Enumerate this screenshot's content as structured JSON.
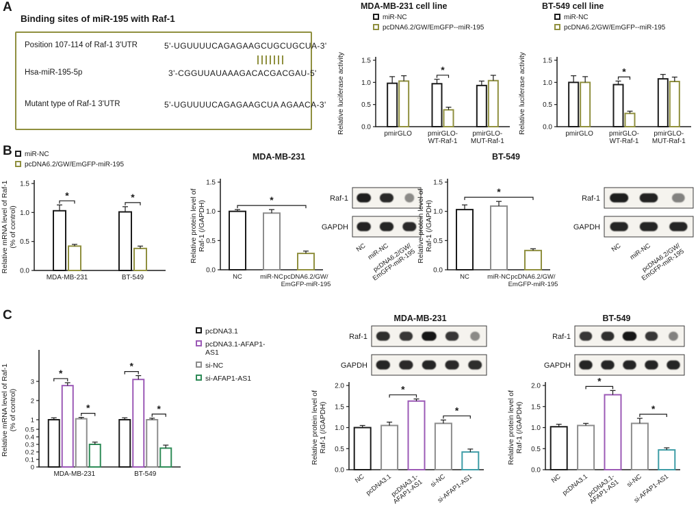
{
  "figure": {
    "panel_a_label": "A",
    "panel_b_label": "B",
    "panel_c_label": "C"
  },
  "binding_box": {
    "title": "Binding sites of miR-195 with Raf-1",
    "rows": [
      {
        "label": "Position 107-114 of Raf-1 3'UTR",
        "sequence": "5'-UGUUUUCAGAGAAGCUGCUGCUA-3'"
      },
      {
        "label": "Hsa-miR-195-5p",
        "sequence": "3'-CGGUUAUAAAGACACGACGAU-5'"
      },
      {
        "label": "Mutant type of Raf-1 3'UTR",
        "sequence": "5'-UGUUUUCAGAGAAGCUA AGAACA-3'"
      }
    ],
    "match_marks": 7
  },
  "chart_data": [
    {
      "id": "luciferase-mda",
      "type": "bar",
      "title": "MDA-MB-231 cell line",
      "ylabel": [
        "Relative luciferase activity"
      ],
      "ylim": [
        0,
        1.5
      ],
      "yticks": [
        {
          "label": "0.0",
          "value": 0
        },
        {
          "label": "0.5",
          "value": 0.5
        },
        {
          "label": "1.0",
          "value": 1.0
        },
        {
          "label": "1.5",
          "value": 1.5
        }
      ],
      "categories": [
        "pmirGLO",
        "pmirGLO-\nWT-Raf-1",
        "pmirGLO-\nMUT-Raf-1"
      ],
      "series": [
        {
          "name": "miR-NC",
          "color": "#1a1a1a",
          "values": [
            0.98,
            0.97,
            0.93
          ],
          "errors": [
            0.15,
            0.1,
            0.1
          ]
        },
        {
          "name": "pcDNA6.2/GW/EmGFP--miR-195",
          "color": "#8f8f3e",
          "values": [
            1.03,
            0.38,
            1.04
          ],
          "errors": [
            0.12,
            0.06,
            0.12
          ]
        }
      ],
      "significance": [
        {
          "group": 1,
          "between": [
            0,
            1
          ],
          "label": "*"
        }
      ]
    },
    {
      "id": "luciferase-bt",
      "type": "bar",
      "title": "BT-549 cell line",
      "ylabel": [
        "Relative luciferase activity"
      ],
      "ylim": [
        0,
        1.5
      ],
      "yticks": [
        {
          "label": "0.0",
          "value": 0
        },
        {
          "label": "0.5",
          "value": 0.5
        },
        {
          "label": "1.0",
          "value": 1.0
        },
        {
          "label": "1.5",
          "value": 1.5
        }
      ],
      "categories": [
        "pmirGLO",
        "pmirGLO-\nWT-Raf-1",
        "pmirGLO-\nMUT-Raf-1"
      ],
      "series": [
        {
          "name": "miR-NC",
          "color": "#1a1a1a",
          "values": [
            1.0,
            0.95,
            1.08
          ],
          "errors": [
            0.15,
            0.08,
            0.1
          ]
        },
        {
          "name": "pcDNA6.2/GW/EmGFP--miR-195",
          "color": "#8f8f3e",
          "values": [
            1.0,
            0.3,
            1.02
          ],
          "errors": [
            0.13,
            0.05,
            0.1
          ]
        }
      ],
      "significance": [
        {
          "group": 1,
          "between": [
            0,
            1
          ],
          "label": "*"
        }
      ]
    },
    {
      "id": "mrna-raf1",
      "type": "bar",
      "title": "",
      "ylabel": [
        "Relative mRNA level of Raf-1",
        "(% of control)"
      ],
      "ylim": [
        0,
        1.5
      ],
      "yticks": [
        {
          "label": "0.0",
          "value": 0
        },
        {
          "label": "0.5",
          "value": 0.5
        },
        {
          "label": "1.0",
          "value": 1.0
        },
        {
          "label": "1.5",
          "value": 1.5
        }
      ],
      "categories": [
        "MDA-MB-231",
        "BT-549"
      ],
      "series": [
        {
          "name": "miR-NC",
          "color": "#1a1a1a",
          "values": [
            1.03,
            1.01
          ],
          "errors": [
            0.1,
            0.09
          ]
        },
        {
          "name": "pcDNA6.2/GW/EmGFP-miR-195",
          "color": "#8f8f3e",
          "values": [
            0.42,
            0.38
          ],
          "errors": [
            0.03,
            0.04
          ]
        }
      ],
      "significance": [
        {
          "group": 0,
          "between": [
            0,
            1
          ],
          "label": "*"
        },
        {
          "group": 1,
          "between": [
            0,
            1
          ],
          "label": "*"
        }
      ]
    },
    {
      "id": "protein-raf1-mda",
      "type": "bar",
      "title": "MDA-MB-231",
      "ylabel": [
        "Relative protein level of",
        "Raf-1 (/GAPDH)"
      ],
      "ylim": [
        0,
        1.5
      ],
      "yticks": [
        {
          "label": "0.0",
          "value": 0
        },
        {
          "label": "0.5",
          "value": 0.5
        },
        {
          "label": "1.0",
          "value": 1.0
        },
        {
          "label": "1.5",
          "value": 1.5
        }
      ],
      "bars": [
        {
          "label": "NC",
          "value": 1.0,
          "error": 0.03,
          "color": "#1a1a1a"
        },
        {
          "label": "miR-NC",
          "value": 0.97,
          "error": 0.06,
          "color": "#8c8c8c"
        },
        {
          "label": "pcDNA6.2/GW/\nEmGFP-miR-195",
          "value": 0.28,
          "error": 0.04,
          "color": "#8f8f3e"
        }
      ],
      "significance": [
        {
          "between": [
            0,
            2
          ],
          "label": "*"
        }
      ]
    },
    {
      "id": "protein-raf1-bt",
      "type": "bar",
      "title": "BT-549",
      "ylabel": [
        "Relative protein level of",
        "Raf-1 (/GAPDH)"
      ],
      "ylim": [
        0,
        1.5
      ],
      "yticks": [
        {
          "label": "0.0",
          "value": 0
        },
        {
          "label": "0.5",
          "value": 0.5
        },
        {
          "label": "1.0",
          "value": 1.0
        },
        {
          "label": "1.5",
          "value": 1.5
        }
      ],
      "bars": [
        {
          "label": "NC",
          "value": 1.03,
          "error": 0.08,
          "color": "#1a1a1a"
        },
        {
          "label": "miR-NC",
          "value": 1.09,
          "error": 0.08,
          "color": "#8c8c8c"
        },
        {
          "label": "pcDNA6.2/GW/\nEmGFP-miR-195",
          "value": 0.33,
          "error": 0.03,
          "color": "#8f8f3e"
        }
      ],
      "significance": [
        {
          "between": [
            0,
            2
          ],
          "label": "*"
        }
      ]
    },
    {
      "id": "mrna-raf1-afap1",
      "type": "bar",
      "title": "",
      "ylabel": [
        "Relative mRNA level of Raf-1",
        "(% of control)"
      ],
      "ylim": [
        0,
        3.4
      ],
      "axis_break": {
        "value": 0.5
      },
      "yticks": [
        {
          "label": "0",
          "value": 0
        },
        {
          "label": "0.1",
          "value": 0.1
        },
        {
          "label": "0.2",
          "value": 0.2
        },
        {
          "label": "0.3",
          "value": 0.3
        },
        {
          "label": "0.4",
          "value": 0.4
        },
        {
          "label": "0.5",
          "value": 0.5
        },
        {
          "label": "1",
          "value": 1
        },
        {
          "label": "2",
          "value": 2
        },
        {
          "label": "3",
          "value": 3
        }
      ],
      "categories": [
        "MDA-MB-231",
        "BT-549"
      ],
      "series": [
        {
          "name": "pcDNA3.1",
          "color": "#1a1a1a",
          "values": [
            1.0,
            1.0
          ],
          "errors": [
            0.1,
            0.1
          ]
        },
        {
          "name": "pcDNA3.1-AFAP1-AS1",
          "color": "#9b59b6",
          "values": [
            2.78,
            3.1
          ],
          "errors": [
            0.15,
            0.2
          ]
        },
        {
          "name": "si-NC",
          "color": "#8c8c8c",
          "values": [
            1.05,
            1.0
          ],
          "errors": [
            0.07,
            0.08
          ]
        },
        {
          "name": "si-AFAP1-AS1",
          "color": "#2e8b57",
          "values": [
            0.3,
            0.25
          ],
          "errors": [
            0.03,
            0.04
          ]
        }
      ],
      "significance": [
        {
          "group": 0,
          "between": [
            0,
            1
          ],
          "label": "*"
        },
        {
          "group": 0,
          "between": [
            2,
            3
          ],
          "label": "*"
        },
        {
          "group": 1,
          "between": [
            0,
            1
          ],
          "label": "*"
        },
        {
          "group": 1,
          "between": [
            2,
            3
          ],
          "label": "*"
        }
      ]
    },
    {
      "id": "protein-afap1-mda",
      "type": "bar",
      "title": "MDA-MB-231",
      "ylabel": [
        "Relative protein level of",
        "Raf-1 (/GAPDH)"
      ],
      "ylim": [
        0,
        2.0
      ],
      "yticks": [
        {
          "label": "0.0",
          "value": 0
        },
        {
          "label": "0.5",
          "value": 0.5
        },
        {
          "label": "1.0",
          "value": 1.0
        },
        {
          "label": "1.5",
          "value": 1.5
        },
        {
          "label": "2.0",
          "value": 2.0
        }
      ],
      "bars": [
        {
          "label": "NC",
          "value": 1.0,
          "error": 0.05,
          "color": "#1a1a1a"
        },
        {
          "label": "pcDNA3.1",
          "value": 1.05,
          "error": 0.08,
          "color": "#8c8c8c"
        },
        {
          "label": "pcDNA3.1-\nAFAP1-AS1",
          "value": 1.63,
          "error": 0.05,
          "color": "#9b59b6"
        },
        {
          "label": "si-NC",
          "value": 1.1,
          "error": 0.08,
          "color": "#8c8c8c"
        },
        {
          "label": "si-AFAP1-AS1",
          "value": 0.42,
          "error": 0.07,
          "color": "#3d9ca6"
        }
      ],
      "significance": [
        {
          "between": [
            1,
            2
          ],
          "label": "*"
        },
        {
          "between": [
            3,
            4
          ],
          "label": "*"
        }
      ]
    },
    {
      "id": "protein-afap1-bt",
      "type": "bar",
      "title": "BT-549",
      "ylabel": [
        "Relative protein level of",
        "Raf-1 (/GAPDH)"
      ],
      "ylim": [
        0,
        2.0
      ],
      "yticks": [
        {
          "label": "0.0",
          "value": 0
        },
        {
          "label": "0.5",
          "value": 0.5
        },
        {
          "label": "1.0",
          "value": 1.0
        },
        {
          "label": "1.5",
          "value": 1.5
        },
        {
          "label": "2.0",
          "value": 2.0
        }
      ],
      "bars": [
        {
          "label": "NC",
          "value": 1.02,
          "error": 0.06,
          "color": "#1a1a1a"
        },
        {
          "label": "pcDNA3.1",
          "value": 1.05,
          "error": 0.05,
          "color": "#8c8c8c"
        },
        {
          "label": "pcDNA3.1-\nAFAP1-AS1",
          "value": 1.78,
          "error": 0.1,
          "color": "#9b59b6"
        },
        {
          "label": "si-NC",
          "value": 1.1,
          "error": 0.12,
          "color": "#8c8c8c"
        },
        {
          "label": "si-AFAP1-AS1",
          "value": 0.47,
          "error": 0.05,
          "color": "#3d9ca6"
        }
      ],
      "significance": [
        {
          "between": [
            1,
            2
          ],
          "label": "*"
        },
        {
          "between": [
            3,
            4
          ],
          "label": "*"
        }
      ]
    }
  ],
  "blots": [
    {
      "id": "blot-b-mda",
      "rows": [
        {
          "label": "Raf-1",
          "bands": [
            0.95,
            0.88,
            0.3
          ]
        },
        {
          "label": "GAPDH",
          "bands": [
            0.92,
            0.9,
            0.88
          ]
        }
      ],
      "lane_labels": [
        "NC",
        "miR-NC",
        "pcDNA6.2/GW/\nEmGFP-miR-195"
      ]
    },
    {
      "id": "blot-b-bt",
      "rows": [
        {
          "label": "Raf-1",
          "bands": [
            0.95,
            0.92,
            0.35
          ]
        },
        {
          "label": "GAPDH",
          "bands": [
            0.9,
            0.9,
            0.9
          ]
        }
      ],
      "lane_labels": [
        "NC",
        "miR-NC",
        "pcDNA6.2/GW/\nEmGFP-miR-195"
      ]
    },
    {
      "id": "blot-c-mda",
      "rows": [
        {
          "label": "Raf-1",
          "bands": [
            0.85,
            0.8,
            1.0,
            0.8,
            0.3
          ]
        },
        {
          "label": "GAPDH",
          "bands": [
            0.9,
            0.88,
            0.9,
            0.88,
            0.85
          ]
        }
      ]
    },
    {
      "id": "blot-c-bt",
      "rows": [
        {
          "label": "Raf-1",
          "bands": [
            0.8,
            0.85,
            1.0,
            0.8,
            0.35
          ]
        },
        {
          "label": "GAPDH",
          "bands": [
            0.9,
            0.9,
            0.9,
            0.9,
            0.9
          ]
        }
      ]
    }
  ]
}
